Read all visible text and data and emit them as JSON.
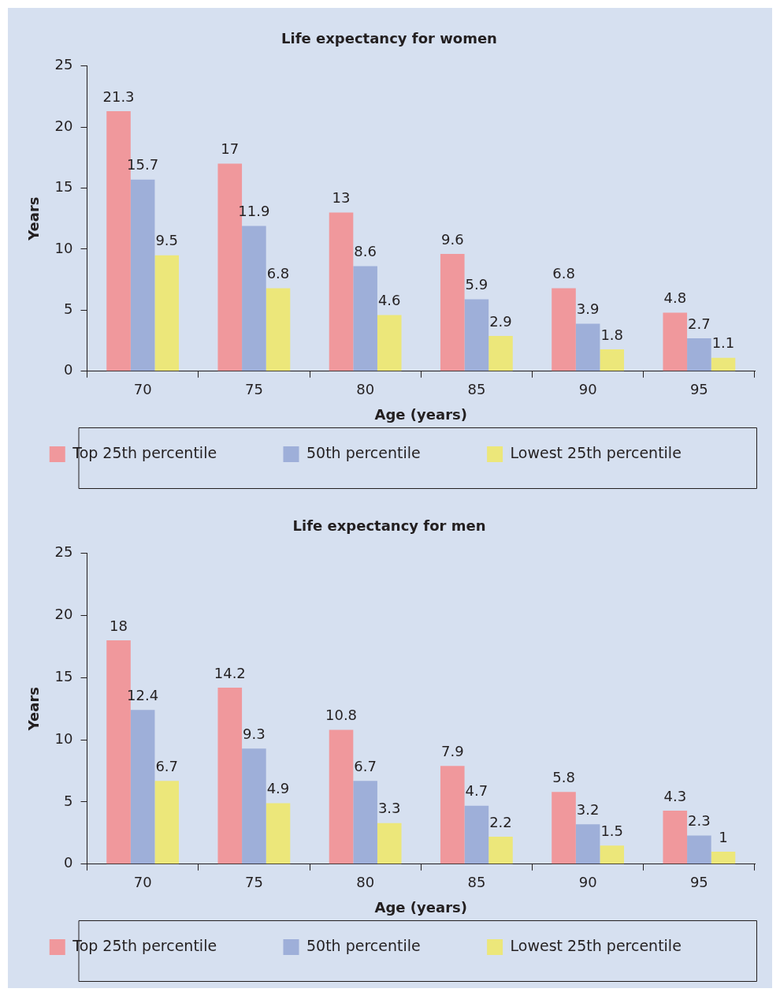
{
  "chart_data": [
    {
      "type": "bar",
      "title": "Life expectancy for women",
      "xlabel": "Age (years)",
      "ylabel": "Years",
      "categories": [
        "70",
        "75",
        "80",
        "85",
        "90",
        "95"
      ],
      "series": [
        {
          "name": "Top 25th percentile",
          "color": "#f0989c",
          "values": [
            21.3,
            17,
            13,
            9.6,
            6.8,
            4.8
          ]
        },
        {
          "name": "50th percentile",
          "color": "#9eafd9",
          "values": [
            15.7,
            11.9,
            8.6,
            5.9,
            3.9,
            2.7
          ]
        },
        {
          "name": "Lowest 25th percentile",
          "color": "#ece77a",
          "values": [
            9.5,
            6.8,
            4.6,
            2.9,
            1.8,
            1.1
          ]
        }
      ],
      "ylim": [
        0,
        25
      ],
      "yticks": [
        0,
        5,
        10,
        15,
        20,
        25
      ],
      "grid": false,
      "legend": "bottom",
      "data_labels": true
    },
    {
      "type": "bar",
      "title": "Life expectancy for men",
      "xlabel": "Age (years)",
      "ylabel": "Years",
      "categories": [
        "70",
        "75",
        "80",
        "85",
        "90",
        "95"
      ],
      "series": [
        {
          "name": "Top 25th percentile",
          "color": "#f0989c",
          "values": [
            18,
            14.2,
            10.8,
            7.9,
            5.8,
            4.3
          ]
        },
        {
          "name": "50th percentile",
          "color": "#9eafd9",
          "values": [
            12.4,
            9.3,
            6.7,
            4.7,
            3.2,
            2.3
          ]
        },
        {
          "name": "Lowest 25th percentile",
          "color": "#ece77a",
          "values": [
            6.7,
            4.9,
            3.3,
            2.2,
            1.5,
            1
          ]
        }
      ],
      "ylim": [
        0,
        25
      ],
      "yticks": [
        0,
        5,
        10,
        15,
        20,
        25
      ],
      "grid": false,
      "legend": "bottom",
      "data_labels": true
    }
  ]
}
